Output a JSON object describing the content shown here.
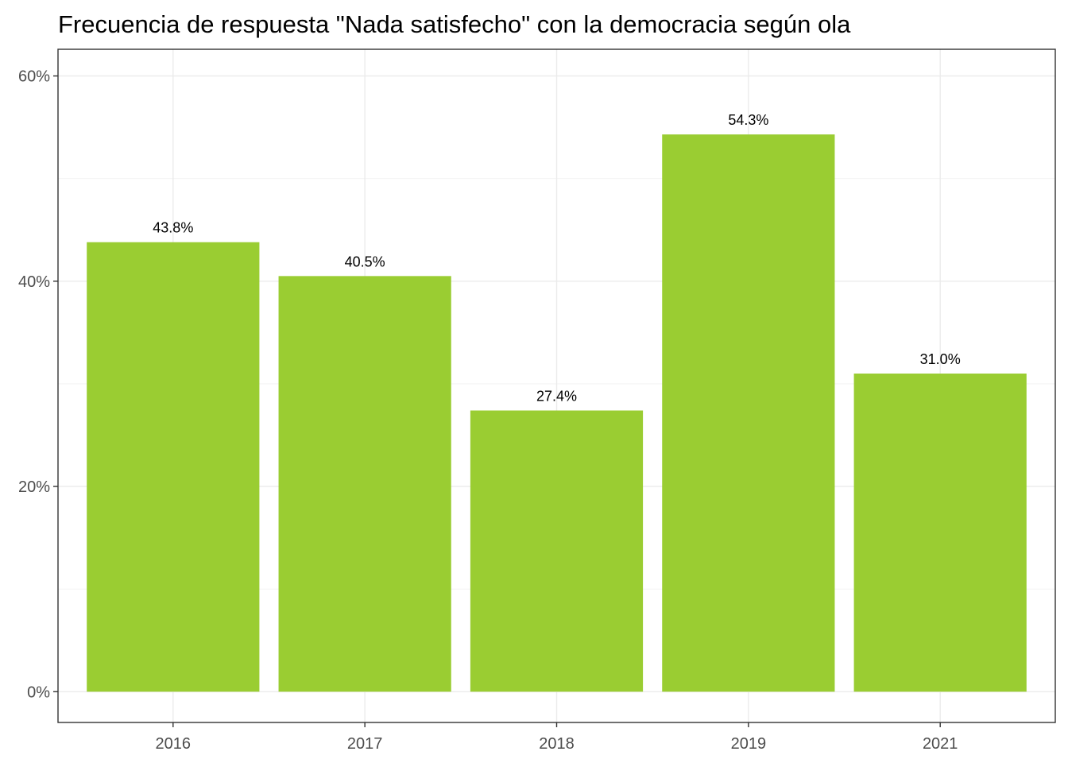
{
  "chart_data": {
    "type": "bar",
    "title": "Frecuencia de respuesta \"Nada satisfecho\" con la democracia según ola",
    "xlabel": "",
    "ylabel": "",
    "categories": [
      "2016",
      "2017",
      "2018",
      "2019",
      "2021"
    ],
    "values": [
      43.8,
      40.5,
      27.4,
      54.3,
      31.0
    ],
    "value_labels": [
      "43.8%",
      "40.5%",
      "27.4%",
      "54.3%",
      "31.0%"
    ],
    "y_ticks": [
      0,
      20,
      40,
      60
    ],
    "y_tick_labels": [
      "0%",
      "20%",
      "40%",
      "60%"
    ],
    "ylim": [
      -3,
      62.6
    ],
    "grid": true,
    "legend": "none",
    "bar_color": "#9ACD32"
  }
}
